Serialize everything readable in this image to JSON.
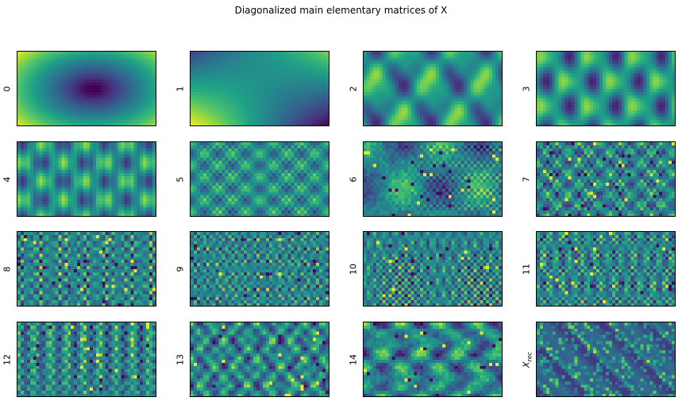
{
  "title": "Diagonalized main elementary matrices of X",
  "colormap": [
    "#440154",
    "#46327e",
    "#365c8d",
    "#277f8e",
    "#1fa187",
    "#4ac16d",
    "#a0da39",
    "#fde725"
  ],
  "chart_data": {
    "type": "heatmap",
    "title": "Diagonalized main elementary matrices of X",
    "grid": false,
    "layout": "4x4 grid of heatmap panels",
    "panels": [
      {
        "label": "0"
      },
      {
        "label": "1"
      },
      {
        "label": "2"
      },
      {
        "label": "3"
      },
      {
        "label": "4"
      },
      {
        "label": "5"
      },
      {
        "label": "6"
      },
      {
        "label": "7"
      },
      {
        "label": "8"
      },
      {
        "label": "9"
      },
      {
        "label": "10"
      },
      {
        "label": "11"
      },
      {
        "label": "12"
      },
      {
        "label": "13"
      },
      {
        "label": "14"
      },
      {
        "label": "X_rec"
      }
    ]
  }
}
